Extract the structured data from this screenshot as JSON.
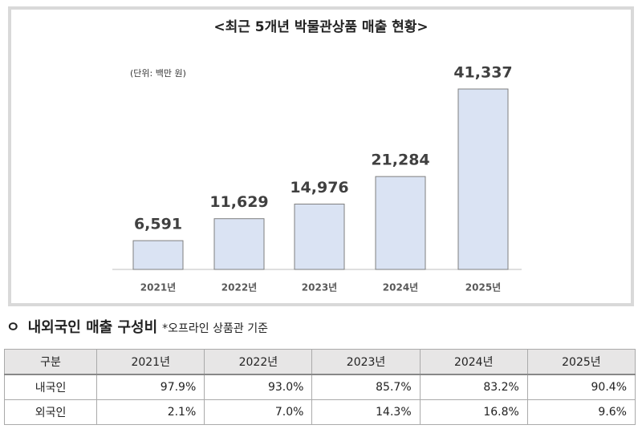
{
  "chart_data": {
    "type": "bar",
    "title": "<최근 5개년 박물관상품 매출 현황>",
    "unit_note": "(단위: 백만 원)",
    "categories": [
      "2021년",
      "2022년",
      "2023년",
      "2024년",
      "2025년"
    ],
    "values": [
      6591,
      11629,
      14976,
      21284,
      41337
    ],
    "value_labels": [
      "6,591",
      "11,629",
      "14,976",
      "21,284",
      "41,337"
    ],
    "color": "#dae3f3"
  },
  "section": {
    "bullet": "ㅇ",
    "title": "내외국인 매출 구성비",
    "note": "*오프라인 상품관 기준"
  },
  "table": {
    "header": [
      "구분",
      "2021년",
      "2022년",
      "2023년",
      "2024년",
      "2025년"
    ],
    "rows": [
      [
        "내국인",
        "97.9%",
        "93.0%",
        "85.7%",
        "83.2%",
        "90.4%"
      ],
      [
        "외국인",
        "2.1%",
        "7.0%",
        "14.3%",
        "16.8%",
        "9.6%"
      ]
    ]
  }
}
